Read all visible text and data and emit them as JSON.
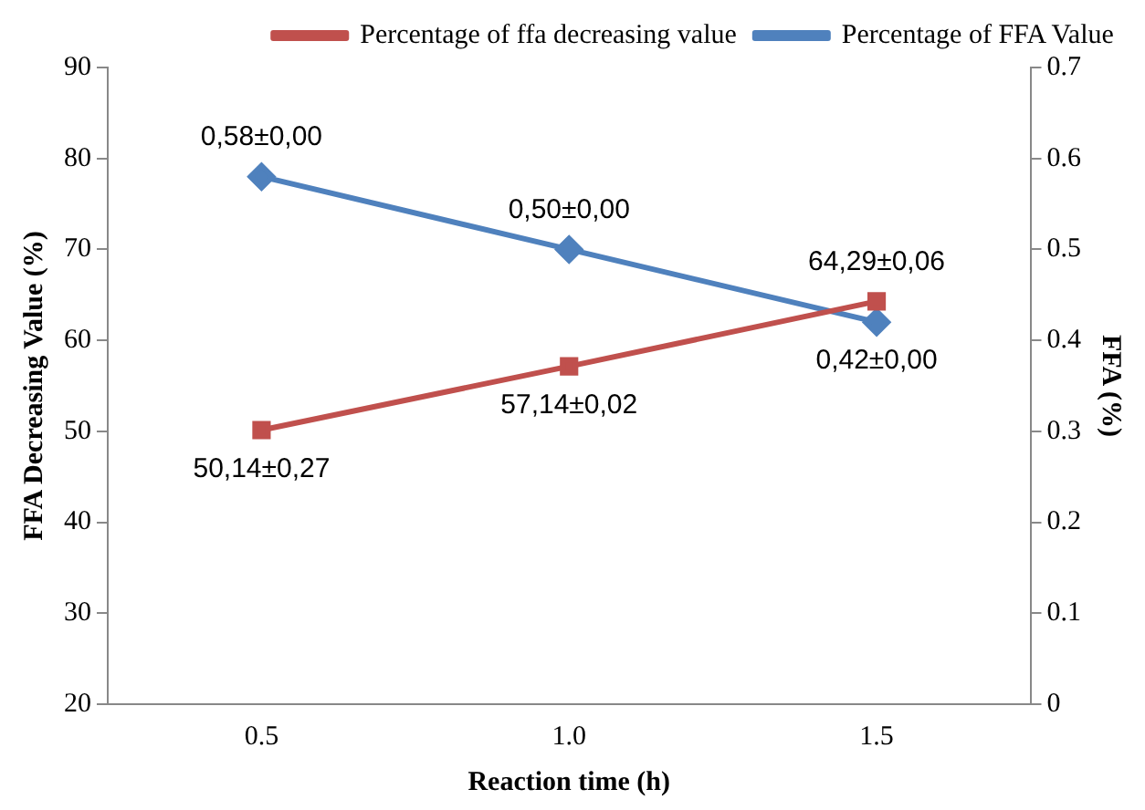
{
  "chart_data": {
    "type": "line",
    "xlabel": "Reaction time (h)",
    "ylabel": "FFA Decreasing Value (%)",
    "y2label": "FFA (%)",
    "categories": [
      "0.5",
      "1.0",
      "1.5"
    ],
    "series": [
      {
        "name": "Percentage of ffa decreasing value",
        "color": "#c0504d",
        "marker": "square",
        "values": [
          50.14,
          57.14,
          64.29
        ],
        "value_labels": [
          "50,14±0,27",
          "57,14±0,02",
          "64,29±0,06"
        ]
      },
      {
        "name": "Percentage of FFA Value",
        "color": "#4f81bd",
        "marker": "diamond",
        "axis": "y2",
        "values": [
          0.58,
          0.5,
          0.42
        ],
        "value_labels": [
          "0,58±0,00",
          "0,50±0,00",
          "0,42±0,00"
        ]
      }
    ],
    "ylim": [
      20,
      90
    ],
    "yticks": [
      20,
      30,
      40,
      50,
      60,
      70,
      80,
      90
    ],
    "y2lim": [
      0,
      0.7
    ],
    "y2ticks": [
      0,
      0.1,
      0.2,
      0.3,
      0.4,
      0.5,
      0.6,
      0.7
    ],
    "grid": false,
    "legend": "top",
    "line_style": "solid"
  }
}
